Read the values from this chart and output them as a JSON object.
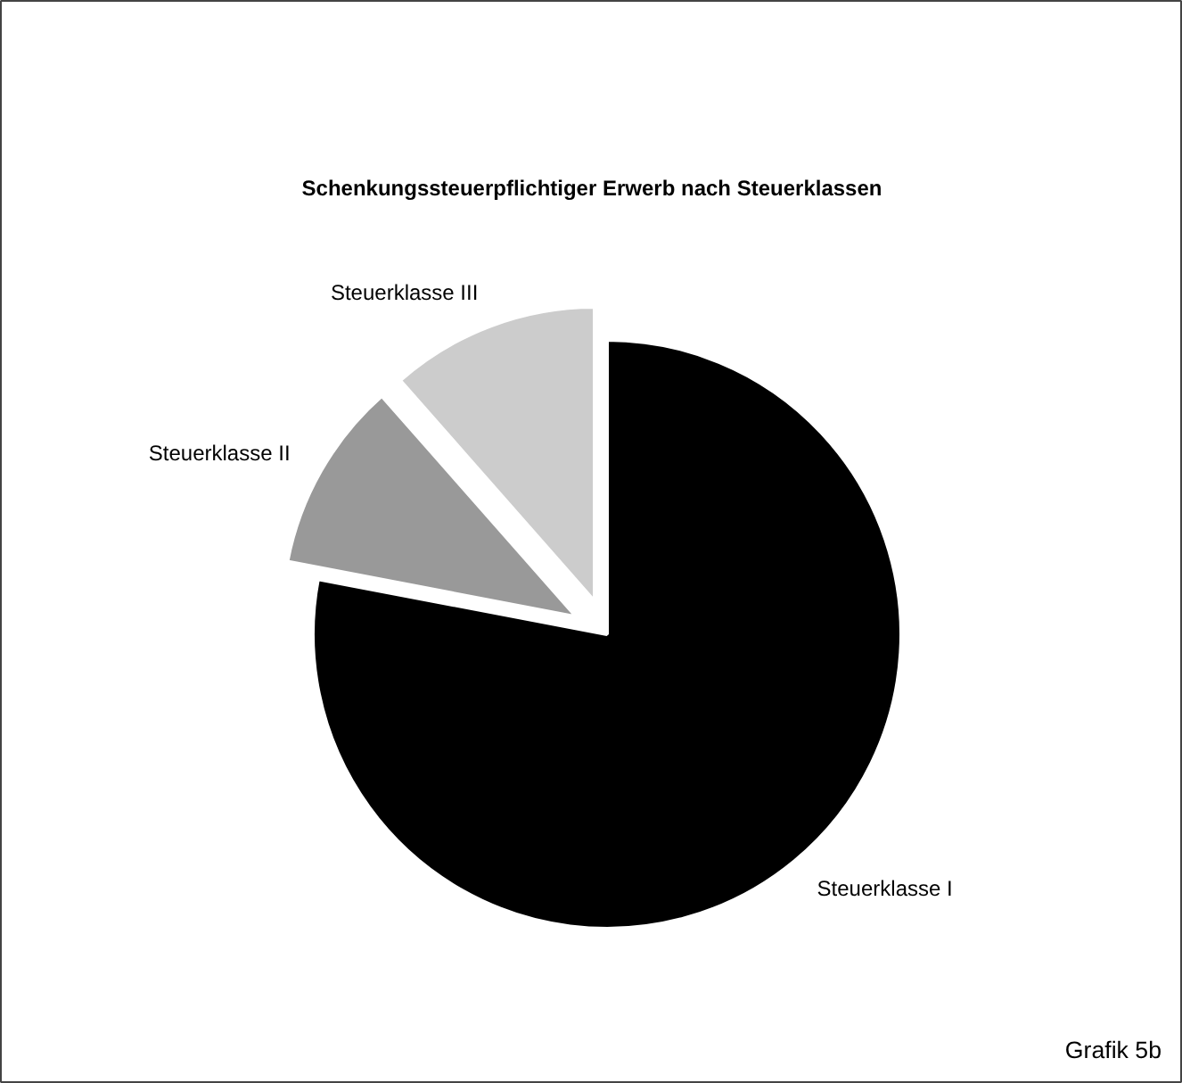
{
  "chart_data": {
    "type": "pie",
    "title": "Schenkungssteuerpflichtiger Erwerb nach Steuerklassen",
    "categories": [
      "Steuerklasse I",
      "Steuerklasse II",
      "Steuerklasse III"
    ],
    "values": [
      78,
      10.5,
      11.5
    ],
    "colors": [
      "#000000",
      "#999999",
      "#cccccc"
    ],
    "annotations": [
      "Grafik 5b"
    ]
  }
}
